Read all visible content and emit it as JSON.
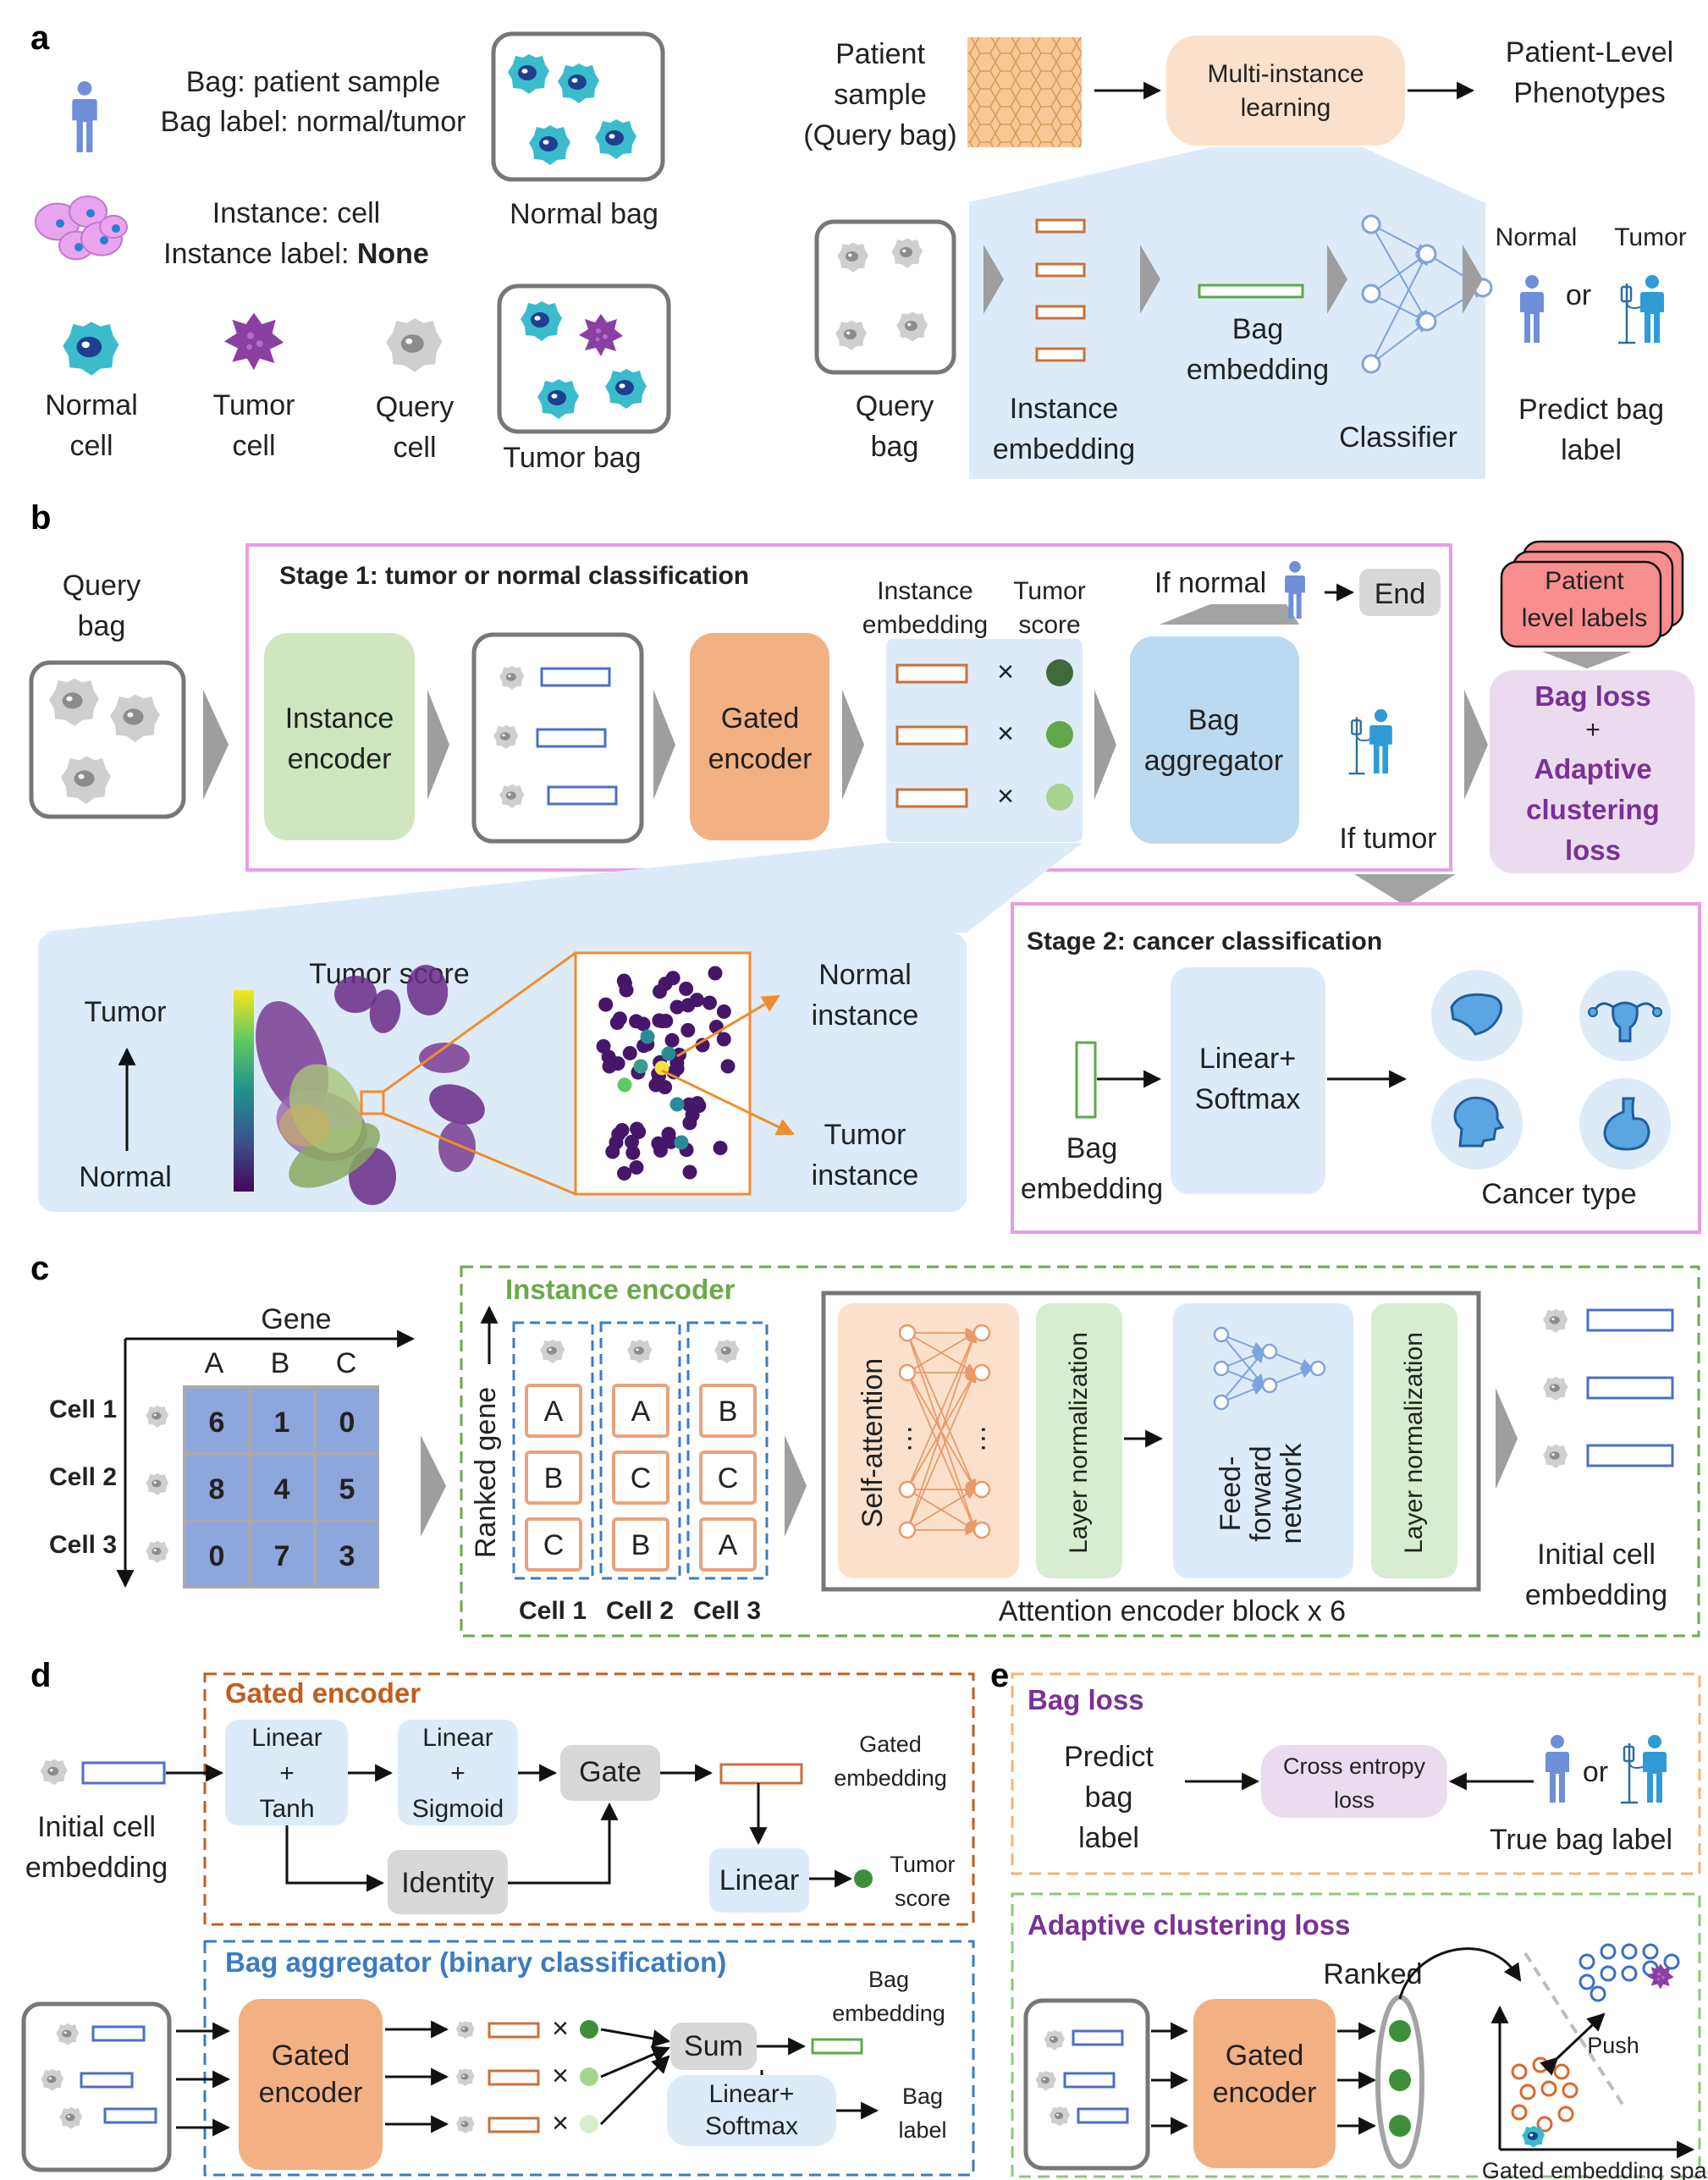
{
  "panels": [
    "a",
    "b",
    "c",
    "d",
    "e"
  ],
  "a": {
    "bag_line1": "Bag: patient sample",
    "bag_line2": "Bag label: normal/tumor",
    "inst_line1": "Instance: cell",
    "inst_line2_prefix": "Instance label: ",
    "inst_line2_bold": "None",
    "normal_bag": "Normal bag",
    "tumor_bag": "Tumor bag",
    "normal_cell": [
      "Normal",
      "cell"
    ],
    "tumor_cell": [
      "Tumor",
      "cell"
    ],
    "query_cell": [
      "Query",
      "cell"
    ],
    "patient_sample": [
      "Patient",
      "sample",
      "(Query bag)"
    ],
    "mil": [
      "Multi-instance",
      "learning"
    ],
    "phenotypes": [
      "Patient-Level",
      "Phenotypes"
    ],
    "query_bag": [
      "Query",
      "bag"
    ],
    "instance_embedding": [
      "Instance",
      "embedding"
    ],
    "bag_embedding": [
      "Bag",
      "embedding"
    ],
    "classifier": "Classifier",
    "normal": "Normal",
    "tumor": "Tumor",
    "or": "or",
    "predict": [
      "Predict bag",
      "label"
    ]
  },
  "b": {
    "stage1": "Stage 1: tumor or normal classification",
    "query_bag": [
      "Query",
      "bag"
    ],
    "instance_encoder": [
      "Instance",
      "encoder"
    ],
    "gated_encoder": [
      "Gated",
      "encoder"
    ],
    "inst_emb": [
      "Instance",
      "embedding"
    ],
    "tumor_score": [
      "Tumor",
      "score"
    ],
    "times": "×",
    "bag_aggregator": [
      "Bag",
      "aggregator"
    ],
    "if_normal": "If normal",
    "end": "End",
    "if_tumor": "If tumor",
    "patient_labels": [
      "Patient",
      "level labels"
    ],
    "bag_loss": "Bag loss",
    "plus": "+",
    "adaptive": [
      "Adaptive",
      "clustering",
      "loss"
    ],
    "tumor": "Tumor",
    "normal": "Normal",
    "tumor_score_title": "Tumor score",
    "normal_instance": [
      "Normal",
      "instance"
    ],
    "tumor_instance": [
      "Tumor",
      "instance"
    ],
    "stage2": "Stage 2: cancer classification",
    "bag_embedding": [
      "Bag",
      "embedding"
    ],
    "linear_softmax": [
      "Linear+",
      "Softmax"
    ],
    "cancer_type": "Cancer type"
  },
  "c": {
    "gene": "Gene",
    "columns": [
      "A",
      "B",
      "C"
    ],
    "rows": [
      "Cell 1",
      "Cell 2",
      "Cell 3"
    ],
    "matrix": [
      [
        6,
        1,
        0
      ],
      [
        8,
        4,
        5
      ],
      [
        0,
        7,
        3
      ]
    ],
    "instance_encoder": "Instance encoder",
    "ranked_gene": "Ranked gene",
    "ranked": [
      [
        "A",
        "B",
        "C"
      ],
      [
        "A",
        "C",
        "B"
      ],
      [
        "B",
        "C",
        "A"
      ]
    ],
    "ellipsis": "…",
    "self_attention": "Self-attention",
    "layer_norm": "Layer normalization",
    "ffn": [
      "Feed-",
      "forward",
      "network"
    ],
    "block": "Attention encoder block x 6",
    "initial": [
      "Initial cell",
      "embedding"
    ]
  },
  "d": {
    "gated_encoder": "Gated encoder",
    "initial": [
      "Initial cell",
      "embedding"
    ],
    "linear_tanh": [
      "Linear",
      "+",
      "Tanh"
    ],
    "linear_sigmoid": [
      "Linear",
      "+",
      "Sigmoid"
    ],
    "gate": "Gate",
    "identity": "Identity",
    "gated_embedding": [
      "Gated",
      "embedding"
    ],
    "linear": "Linear",
    "tumor_score": [
      "Tumor",
      "score"
    ],
    "bag_aggregator": "Bag aggregator (binary classification)",
    "gated_enc": [
      "Gated",
      "encoder"
    ],
    "times": "×",
    "sum": "Sum",
    "bag_embedding": [
      "Bag",
      "embedding"
    ],
    "linear_softmax": [
      "Linear+",
      "Softmax"
    ],
    "bag_label": [
      "Bag",
      "label"
    ]
  },
  "e": {
    "bag_loss": "Bag loss",
    "predict": [
      "Predict",
      "bag",
      "label"
    ],
    "cross_entropy": [
      "Cross entropy",
      "loss"
    ],
    "or": "or",
    "true_label": "True bag label",
    "adaptive": "Adaptive clustering loss",
    "gated_enc": [
      "Gated",
      "encoder"
    ],
    "ranked": "Ranked",
    "push": "Push",
    "space": "Gated embedding space"
  }
}
